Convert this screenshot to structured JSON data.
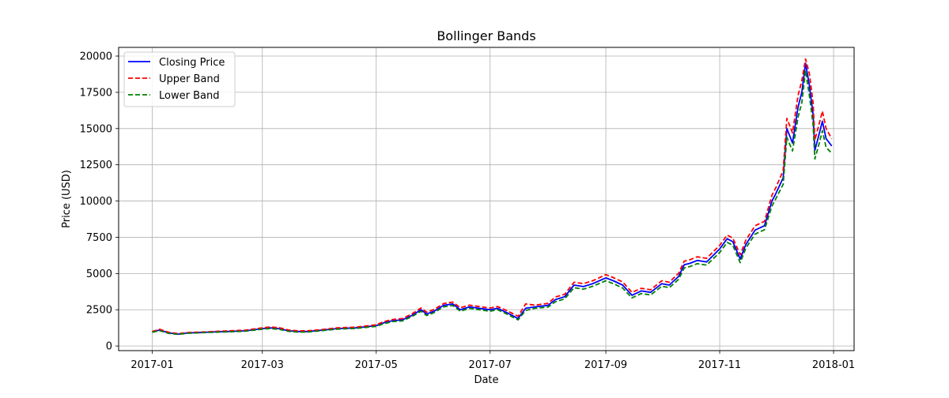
{
  "chart_data": {
    "type": "line",
    "title": "Bollinger Bands",
    "xlabel": "Date",
    "ylabel": "Price (USD)",
    "xlim": [
      "2016-12-14",
      "2018-01-12"
    ],
    "ylim": [
      -320,
      20600
    ],
    "grid": true,
    "legend_position": "top-left",
    "x_ticks": [
      "2017-01-01",
      "2017-03-01",
      "2017-05-01",
      "2017-07-01",
      "2017-09-01",
      "2017-11-01",
      "2018-01-01"
    ],
    "x_tick_labels": [
      "2017-01",
      "2017-03",
      "2017-05",
      "2017-07",
      "2017-09",
      "2017-11",
      "2018-01"
    ],
    "y_ticks": [
      0,
      2500,
      5000,
      7500,
      10000,
      12500,
      15000,
      17500,
      20000
    ],
    "y_tick_labels": [
      "0",
      "2500",
      "5000",
      "7500",
      "10000",
      "12500",
      "15000",
      "17500",
      "20000"
    ],
    "x": [
      "2017-01-01",
      "2017-01-05",
      "2017-01-10",
      "2017-01-15",
      "2017-01-20",
      "2017-01-25",
      "2017-02-01",
      "2017-02-10",
      "2017-02-20",
      "2017-03-01",
      "2017-03-05",
      "2017-03-10",
      "2017-03-15",
      "2017-03-20",
      "2017-03-25",
      "2017-04-01",
      "2017-04-10",
      "2017-04-20",
      "2017-05-01",
      "2017-05-05",
      "2017-05-10",
      "2017-05-15",
      "2017-05-20",
      "2017-05-25",
      "2017-05-28",
      "2017-06-01",
      "2017-06-06",
      "2017-06-11",
      "2017-06-15",
      "2017-06-20",
      "2017-06-25",
      "2017-07-01",
      "2017-07-05",
      "2017-07-10",
      "2017-07-16",
      "2017-07-20",
      "2017-07-25",
      "2017-08-01",
      "2017-08-05",
      "2017-08-10",
      "2017-08-15",
      "2017-08-20",
      "2017-08-25",
      "2017-09-01",
      "2017-09-05",
      "2017-09-10",
      "2017-09-15",
      "2017-09-20",
      "2017-09-25",
      "2017-10-01",
      "2017-10-05",
      "2017-10-10",
      "2017-10-13",
      "2017-10-16",
      "2017-10-20",
      "2017-10-25",
      "2017-11-01",
      "2017-11-05",
      "2017-11-08",
      "2017-11-12",
      "2017-11-15",
      "2017-11-20",
      "2017-11-25",
      "2017-11-29",
      "2017-12-01",
      "2017-12-05",
      "2017-12-07",
      "2017-12-10",
      "2017-12-13",
      "2017-12-15",
      "2017-12-17",
      "2017-12-19",
      "2017-12-21",
      "2017-12-22",
      "2017-12-24",
      "2017-12-26",
      "2017-12-28",
      "2017-12-31"
    ],
    "series": [
      {
        "name": "Closing Price",
        "color": "#0000ff",
        "style": "solid",
        "values": [
          970,
          1100,
          900,
          820,
          900,
          920,
          960,
          1000,
          1050,
          1200,
          1250,
          1200,
          1050,
          1000,
          1000,
          1080,
          1200,
          1250,
          1400,
          1600,
          1750,
          1800,
          2100,
          2500,
          2200,
          2400,
          2800,
          2900,
          2500,
          2700,
          2600,
          2500,
          2600,
          2300,
          1900,
          2600,
          2700,
          2800,
          3200,
          3400,
          4200,
          4100,
          4300,
          4700,
          4500,
          4200,
          3500,
          3800,
          3700,
          4300,
          4200,
          4800,
          5600,
          5700,
          5900,
          5800,
          6700,
          7400,
          7200,
          6000,
          7000,
          8000,
          8300,
          10000,
          10500,
          11600,
          15000,
          14000,
          16500,
          17500,
          19500,
          18000,
          16000,
          13500,
          14500,
          15500,
          14300,
          13800
        ]
      },
      {
        "name": "Upper Band",
        "color": "#ff0000",
        "style": "dashed",
        "values": [
          1000,
          1150,
          940,
          850,
          930,
          950,
          990,
          1040,
          1090,
          1250,
          1310,
          1260,
          1100,
          1050,
          1050,
          1120,
          1250,
          1300,
          1460,
          1680,
          1830,
          1890,
          2200,
          2620,
          2330,
          2520,
          2920,
          3030,
          2640,
          2820,
          2720,
          2620,
          2720,
          2440,
          2050,
          2900,
          2820,
          2940,
          3380,
          3570,
          4400,
          4300,
          4500,
          4920,
          4720,
          4420,
          3700,
          3980,
          3880,
          4500,
          4400,
          5020,
          5850,
          5950,
          6150,
          6050,
          6950,
          7650,
          7450,
          6300,
          7300,
          8300,
          8600,
          10400,
          10900,
          12100,
          15700,
          14700,
          17300,
          18300,
          19800,
          18800,
          16800,
          14200,
          15200,
          16200,
          15000,
          14300
        ]
      },
      {
        "name": "Lower Band",
        "color": "#008000",
        "style": "dashed",
        "values": [
          950,
          1060,
          870,
          800,
          880,
          900,
          940,
          970,
          1020,
          1160,
          1200,
          1150,
          1010,
          960,
          960,
          1050,
          1160,
          1210,
          1350,
          1540,
          1690,
          1730,
          2020,
          2400,
          2100,
          2300,
          2700,
          2790,
          2400,
          2600,
          2500,
          2400,
          2500,
          2200,
          1800,
          2450,
          2600,
          2680,
          3050,
          3250,
          4020,
          3920,
          4120,
          4500,
          4300,
          4000,
          3320,
          3620,
          3520,
          4120,
          4020,
          4600,
          5380,
          5480,
          5680,
          5580,
          6450,
          7150,
          6950,
          5750,
          6750,
          7720,
          8020,
          9650,
          10150,
          11150,
          14400,
          13450,
          15800,
          16800,
          19000,
          17300,
          15300,
          12900,
          13850,
          14850,
          13700,
          13300
        ]
      }
    ]
  }
}
